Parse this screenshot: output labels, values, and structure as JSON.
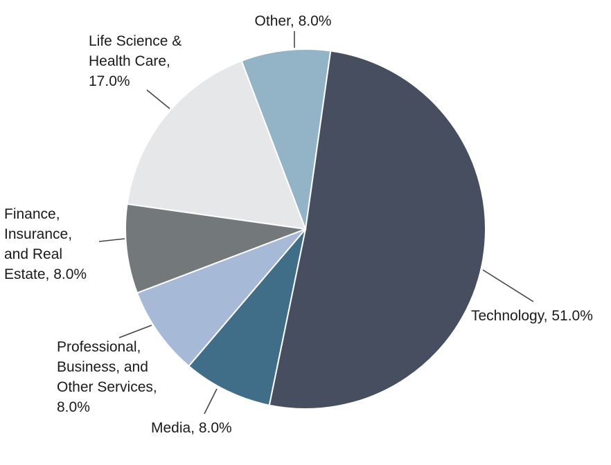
{
  "chart_data": {
    "type": "pie",
    "title": "",
    "start_angle_deg": 8,
    "direction": "clockwise",
    "slices": [
      {
        "label": "Technology",
        "value": 51.0,
        "data_label": "Technology, 51.0%",
        "color": "#474e5f"
      },
      {
        "label": "Media",
        "value": 8.0,
        "data_label": "Media, 8.0%",
        "color": "#406e89"
      },
      {
        "label": "Professional, Business, and Other Services",
        "value": 8.0,
        "data_label": "Professional, Business, and Other Services, 8.0%",
        "color": "#a6b9d6"
      },
      {
        "label": "Finance, Insurance, and Real Estate",
        "value": 8.0,
        "data_label": "Finance, Insurance, and Real Estate, 8.0%",
        "color": "#73787b"
      },
      {
        "label": "Life Science & Health Care",
        "value": 17.0,
        "data_label": "Life Science & Health Care, 17.0%",
        "color": "#e6e7e9"
      },
      {
        "label": "Other",
        "value": 8.0,
        "data_label": "Other, 8.0%",
        "color": "#92b4c6"
      }
    ]
  }
}
